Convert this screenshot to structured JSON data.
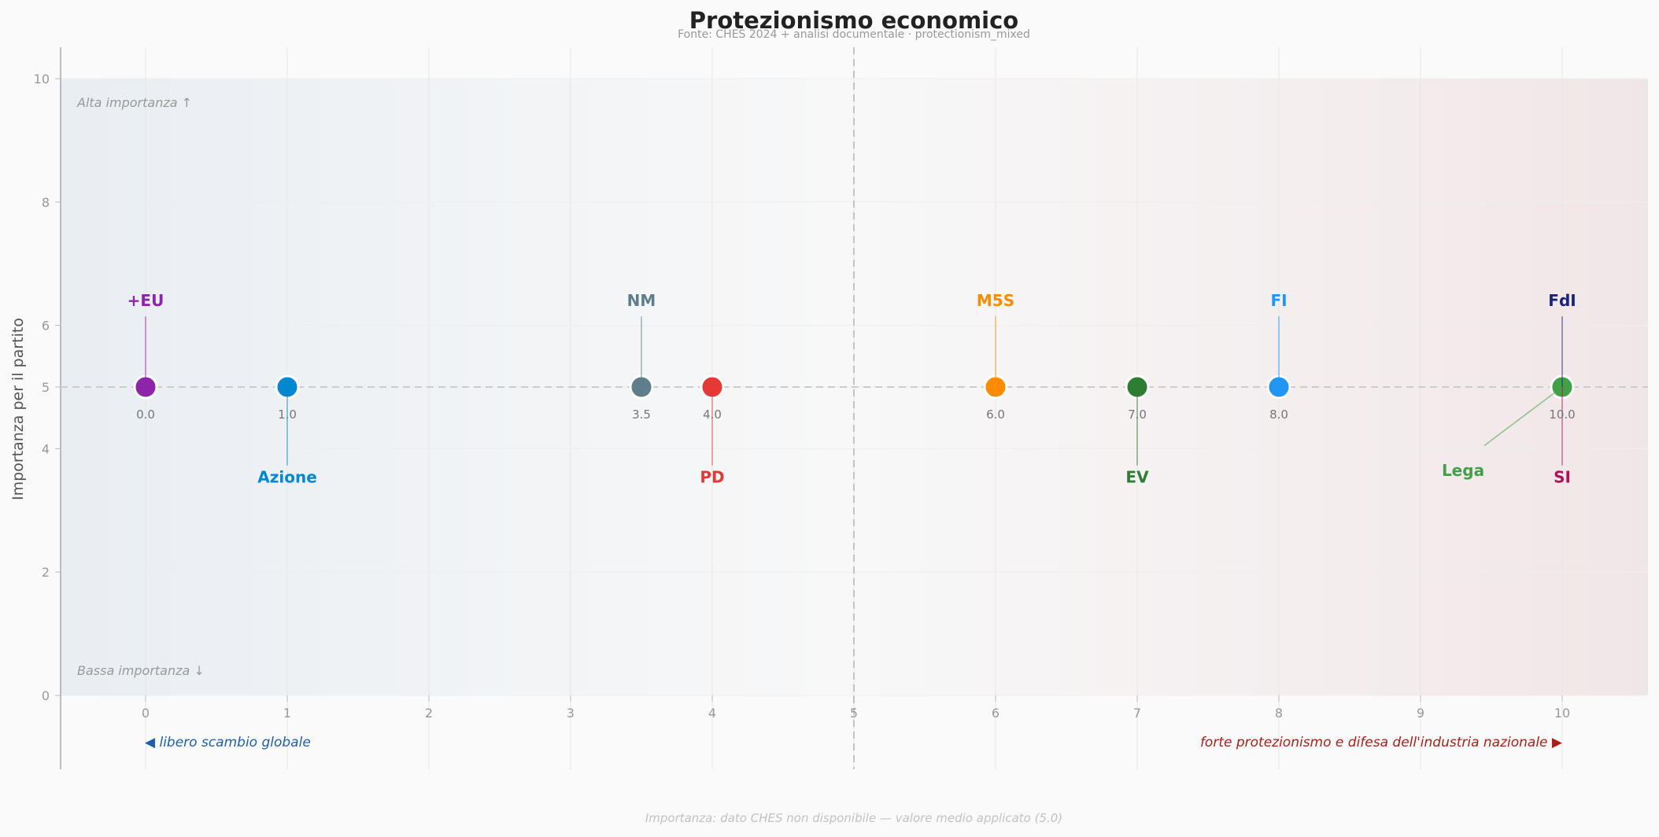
{
  "chart_data": {
    "type": "scatter",
    "title": "Protezionismo economico",
    "subtitle": "Fonte: CHES 2024 + analisi documentale  ·  protectionism_mixed",
    "ylabel": "Importanza per il partito",
    "xlim": [
      -0.6,
      10.6
    ],
    "ylim": [
      0,
      10
    ],
    "x_ticks": [
      "0",
      "1",
      "2",
      "3",
      "4",
      "5",
      "6",
      "7",
      "8",
      "9",
      "10"
    ],
    "y_ticks": [
      "0",
      "2",
      "4",
      "5",
      "6",
      "8",
      "10"
    ],
    "grid": true,
    "zone_high": "Alta importanza ↑",
    "zone_low": "Bassa importanza ↓",
    "axis_left_note": "◀  libero scambio globale",
    "axis_right_note": "forte protezionismo e difesa dell'industria nazionale  ▶",
    "footnote": "Importanza: dato CHES non disponibile — valore medio applicato (5.0)",
    "points": [
      {
        "party": "+EU",
        "x": 0.0,
        "y": 5.0,
        "value_label": "0.0",
        "color": "#8e24aa",
        "label_pos": "above"
      },
      {
        "party": "Azione",
        "x": 1.0,
        "y": 5.0,
        "value_label": "1.0",
        "color": "#0288d1",
        "label_pos": "below"
      },
      {
        "party": "NM",
        "x": 3.5,
        "y": 5.0,
        "value_label": "3.5",
        "color": "#607d8b",
        "label_pos": "above"
      },
      {
        "party": "PD",
        "x": 4.0,
        "y": 5.0,
        "value_label": "4.0",
        "color": "#e53935",
        "label_pos": "below"
      },
      {
        "party": "M5S",
        "x": 6.0,
        "y": 5.0,
        "value_label": "6.0",
        "color": "#fb8c00",
        "label_pos": "above"
      },
      {
        "party": "EV",
        "x": 7.0,
        "y": 5.0,
        "value_label": "7.0",
        "color": "#2e7d32",
        "label_pos": "below"
      },
      {
        "party": "FI",
        "x": 8.0,
        "y": 5.0,
        "value_label": "8.0",
        "color": "#2196f3",
        "label_pos": "above"
      },
      {
        "party": "FdI",
        "x": 10.0,
        "y": 5.0,
        "value_label": "",
        "color": "#1a237e",
        "label_pos": "above"
      },
      {
        "party": "SI",
        "x": 10.0,
        "y": 5.0,
        "value_label": "",
        "color": "#ad1457",
        "label_pos": "below"
      },
      {
        "party": "Lega",
        "x": 10.0,
        "y": 5.0,
        "value_label": "10.0",
        "color": "#43a047",
        "label_pos": "below-left"
      }
    ]
  }
}
